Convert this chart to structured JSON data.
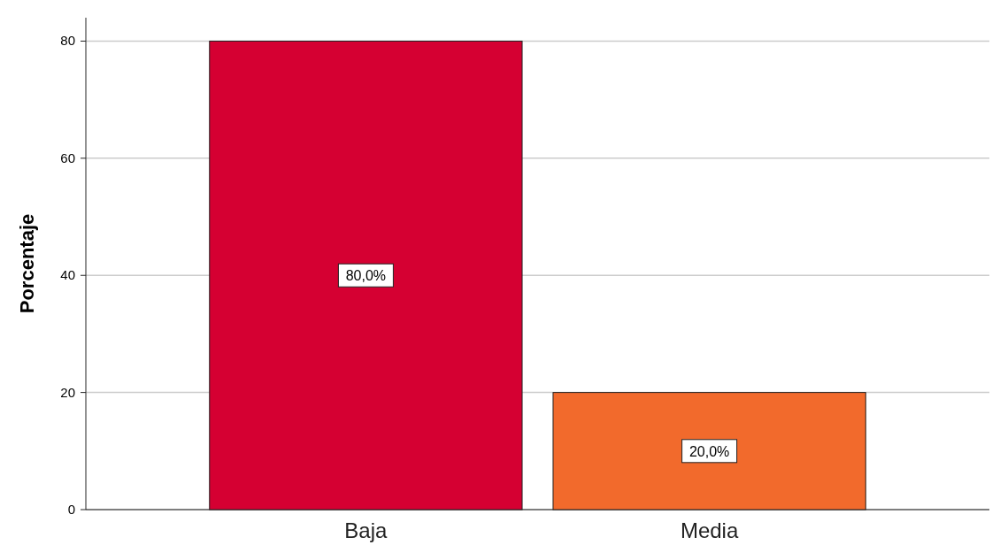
{
  "chart_data": {
    "type": "bar",
    "ylabel": "Porcentaje",
    "categories": [
      "Baja",
      "Media"
    ],
    "values": [
      80,
      20
    ],
    "colors": [
      "#d50032",
      "#f26a2c"
    ],
    "value_labels": [
      "80,0%",
      "20,0%"
    ],
    "ylim": [
      0,
      84
    ],
    "yticks": [
      0,
      20,
      40,
      60,
      80
    ],
    "grid": "y"
  }
}
